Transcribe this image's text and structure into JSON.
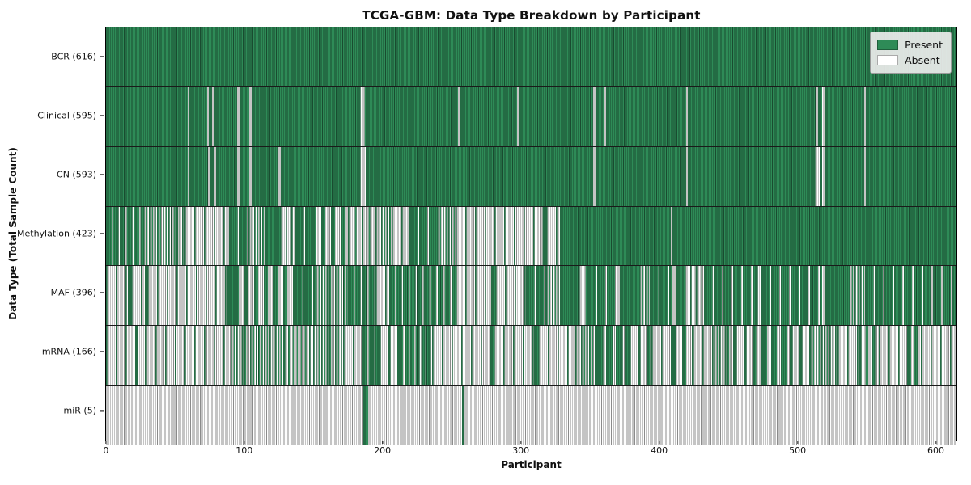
{
  "chart_data": {
    "type": "heatmap",
    "title": "TCGA-GBM: Data Type Breakdown by Participant",
    "xlabel": "Participant",
    "ylabel": "Data Type (Total Sample Count)",
    "xlim": [
      0,
      616
    ],
    "x_ticks": [
      0,
      100,
      200,
      300,
      400,
      500,
      600
    ],
    "grid": false,
    "legend": {
      "position": "upper right",
      "entries": [
        {
          "label": "Present",
          "color": "#2e8b57"
        },
        {
          "label": "Absent",
          "color": "#ffffff"
        }
      ]
    },
    "colors": {
      "present": "#2e8b57",
      "absent": "#fdfdfd",
      "bar_edge": "rgba(0,0,0,0.45)",
      "row_separator": "#1a1a1a"
    },
    "rows": [
      {
        "label": "BCR (616)",
        "data_type": "BCR",
        "total": 616,
        "segments": [
          [
            0,
            616,
            1
          ]
        ]
      },
      {
        "label": "Clinical (595)",
        "data_type": "Clinical",
        "total": 595,
        "segments": [
          [
            0,
            59,
            1
          ],
          [
            59,
            60.5,
            0
          ],
          [
            60.5,
            73,
            1
          ],
          [
            73,
            74.5,
            0
          ],
          [
            74.5,
            77,
            1
          ],
          [
            77,
            78.5,
            0
          ],
          [
            78.5,
            95,
            1
          ],
          [
            95,
            96.5,
            0
          ],
          [
            96.5,
            104,
            1
          ],
          [
            104,
            105.5,
            0
          ],
          [
            105.5,
            182,
            1
          ],
          [
            182,
            189,
            0.4
          ],
          [
            189,
            255,
            1
          ],
          [
            255,
            256.5,
            0
          ],
          [
            256.5,
            298,
            1
          ],
          [
            298,
            299.5,
            0
          ],
          [
            299.5,
            353,
            1
          ],
          [
            353,
            354.5,
            0
          ],
          [
            354.5,
            361,
            1
          ],
          [
            361,
            362.5,
            0
          ],
          [
            362.5,
            420,
            1
          ],
          [
            420,
            421.5,
            0
          ],
          [
            421.5,
            514,
            1
          ],
          [
            514,
            515.5,
            0
          ],
          [
            515.5,
            519,
            1
          ],
          [
            519,
            520.5,
            0
          ],
          [
            520.5,
            549,
            1
          ],
          [
            549,
            550.5,
            0
          ],
          [
            550.5,
            616,
            1
          ]
        ]
      },
      {
        "label": "CN (593)",
        "data_type": "CN",
        "total": 593,
        "segments": [
          [
            0,
            59,
            1
          ],
          [
            59,
            60.5,
            0
          ],
          [
            60.5,
            74,
            1
          ],
          [
            74,
            75.5,
            0
          ],
          [
            75.5,
            78,
            1
          ],
          [
            78,
            79.5,
            0
          ],
          [
            79.5,
            95,
            1
          ],
          [
            95,
            96.5,
            0
          ],
          [
            96.5,
            104,
            1
          ],
          [
            104,
            105.5,
            0
          ],
          [
            105.5,
            125,
            1
          ],
          [
            125,
            126.5,
            0
          ],
          [
            126.5,
            182,
            1
          ],
          [
            182,
            188,
            0.3
          ],
          [
            188,
            353,
            1
          ],
          [
            353,
            354.5,
            0
          ],
          [
            354.5,
            420,
            1
          ],
          [
            420,
            421.5,
            0
          ],
          [
            421.5,
            513,
            1
          ],
          [
            513,
            517,
            0.25
          ],
          [
            517,
            519,
            1
          ],
          [
            519,
            520.5,
            0
          ],
          [
            520.5,
            549,
            1
          ],
          [
            549,
            550.5,
            0
          ],
          [
            550.5,
            616,
            1
          ]
        ]
      },
      {
        "label": "Methylation (423)",
        "data_type": "Methylation",
        "total": 423,
        "segments": [
          [
            0,
            27,
            0.8
          ],
          [
            27,
            57,
            0.5
          ],
          [
            57,
            89,
            0.12
          ],
          [
            89,
            103,
            0.85
          ],
          [
            103,
            115,
            0.5
          ],
          [
            115,
            126,
            1
          ],
          [
            126,
            137,
            0.25
          ],
          [
            137,
            149,
            0.9
          ],
          [
            149,
            175,
            0.45
          ],
          [
            175,
            195,
            0.2
          ],
          [
            195,
            207,
            0.5
          ],
          [
            207,
            220,
            0.15
          ],
          [
            220,
            240,
            0.9
          ],
          [
            240,
            253,
            0.5
          ],
          [
            253,
            317,
            0.04
          ],
          [
            317,
            319,
            1
          ],
          [
            319,
            329,
            0.05
          ],
          [
            329,
            409,
            1
          ],
          [
            409,
            410.5,
            0
          ],
          [
            410.5,
            616,
            1
          ]
        ]
      },
      {
        "label": "MAF (396)",
        "data_type": "MAF",
        "total": 396,
        "segments": [
          [
            0,
            16,
            0.08
          ],
          [
            16,
            18,
            1
          ],
          [
            18,
            28,
            0.1
          ],
          [
            28,
            30,
            1
          ],
          [
            30,
            88,
            0.04
          ],
          [
            88,
            93,
            1
          ],
          [
            93,
            136,
            0.45
          ],
          [
            136,
            152,
            0.85
          ],
          [
            152,
            175,
            0.5
          ],
          [
            175,
            195,
            0.8
          ],
          [
            195,
            205,
            0.15
          ],
          [
            205,
            253,
            0.8
          ],
          [
            253,
            279,
            0.1
          ],
          [
            279,
            282,
            1
          ],
          [
            282,
            304,
            0.1
          ],
          [
            304,
            319,
            0.9
          ],
          [
            319,
            329,
            0.5
          ],
          [
            329,
            342,
            1
          ],
          [
            342,
            349,
            0.2
          ],
          [
            349,
            370,
            0.95
          ],
          [
            370,
            372,
            0
          ],
          [
            372,
            386,
            1
          ],
          [
            386,
            394,
            0.5
          ],
          [
            394,
            410,
            0.9
          ],
          [
            410,
            413,
            0
          ],
          [
            413,
            419,
            1
          ],
          [
            419,
            433,
            0.25
          ],
          [
            433,
            470,
            0.97
          ],
          [
            470,
            475,
            0.4
          ],
          [
            475,
            519,
            0.97
          ],
          [
            519,
            521,
            0
          ],
          [
            521,
            538,
            1
          ],
          [
            538,
            550,
            0.5
          ],
          [
            550,
            616,
            0.96
          ]
        ]
      },
      {
        "label": "mRNA (166)",
        "data_type": "mRNA",
        "total": 166,
        "segments": [
          [
            0,
            21,
            0.02
          ],
          [
            21,
            29,
            0.3
          ],
          [
            29,
            90,
            0.03
          ],
          [
            90,
            129,
            0.5
          ],
          [
            129,
            152,
            0.35
          ],
          [
            152,
            172,
            0.5
          ],
          [
            172,
            185,
            0.1
          ],
          [
            185,
            197,
            0.8
          ],
          [
            197,
            212,
            0.3
          ],
          [
            212,
            236,
            0.75
          ],
          [
            236,
            278,
            0.03
          ],
          [
            278,
            281,
            1
          ],
          [
            281,
            310,
            0.05
          ],
          [
            310,
            313,
            0.6
          ],
          [
            313,
            340,
            0.15
          ],
          [
            340,
            355,
            0.5
          ],
          [
            355,
            378,
            0.7
          ],
          [
            378,
            395,
            0.3
          ],
          [
            395,
            410,
            0.1
          ],
          [
            410,
            425,
            0.45
          ],
          [
            425,
            440,
            0.15
          ],
          [
            440,
            455,
            0.5
          ],
          [
            455,
            475,
            0.3
          ],
          [
            475,
            495,
            0.55
          ],
          [
            495,
            510,
            0.3
          ],
          [
            510,
            530,
            0.5
          ],
          [
            530,
            545,
            0.15
          ],
          [
            545,
            560,
            0.4
          ],
          [
            560,
            580,
            0.1
          ],
          [
            580,
            590,
            0.6
          ],
          [
            590,
            616,
            0.08
          ]
        ]
      },
      {
        "label": "miR (5)",
        "data_type": "miR",
        "total": 5,
        "segments": [
          [
            0,
            186,
            0
          ],
          [
            186,
            190,
            1
          ],
          [
            190,
            258,
            0
          ],
          [
            258,
            259.5,
            1
          ],
          [
            259.5,
            616,
            0
          ]
        ]
      }
    ]
  }
}
